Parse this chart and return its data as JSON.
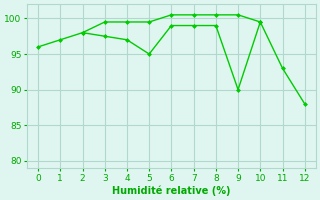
{
  "line1_x": [
    0,
    1,
    2,
    3,
    4,
    5,
    6,
    7,
    8,
    9,
    10
  ],
  "line1_y": [
    96,
    97,
    98,
    99.5,
    99.5,
    99.5,
    100.5,
    100.5,
    100.5,
    100.5,
    99.5
  ],
  "line2_x": [
    2,
    3,
    4,
    5,
    6,
    7,
    8,
    9,
    10,
    11,
    12
  ],
  "line2_y": [
    98,
    97.5,
    97,
    95,
    99,
    99,
    99,
    90,
    99.5,
    93,
    88
  ],
  "color": "#00cc00",
  "bg_color": "#dff5f0",
  "grid_color": "#b0d8cc",
  "xlabel": "Humidité relative (%)",
  "xlabel_color": "#00aa00",
  "tick_color": "#00aa00",
  "ylim": [
    79,
    102
  ],
  "xlim": [
    -0.5,
    12.5
  ],
  "yticks": [
    80,
    85,
    90,
    95,
    100
  ],
  "xticks": [
    0,
    1,
    2,
    3,
    4,
    5,
    6,
    7,
    8,
    9,
    10,
    11,
    12
  ]
}
